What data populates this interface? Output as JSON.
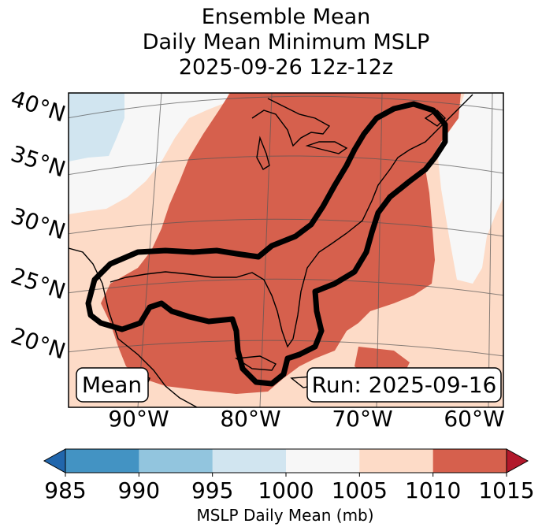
{
  "chart_data": {
    "type": "heatmap",
    "title_lines": [
      "Ensemble Mean",
      "Daily Mean Minimum MSLP",
      "2025-09-26 12z-12z"
    ],
    "lat_labels": [
      "40°N",
      "35°N",
      "30°N",
      "25°N",
      "20°N"
    ],
    "lon_labels": [
      "90°W",
      "80°W",
      "70°W",
      "60°W"
    ],
    "colorbar": {
      "label": "MSLP Daily Mean (mb)",
      "ticks": [
        "985",
        "990",
        "995",
        "1000",
        "1005",
        "1010",
        "1015"
      ],
      "levels": [
        985,
        990,
        995,
        1000,
        1005,
        1010,
        1015
      ],
      "colors": [
        "#4393c3",
        "#92c5de",
        "#d1e5f0",
        "#f7f7f7",
        "#fddbc7",
        "#d6604d"
      ],
      "under_color": "#2166ac",
      "over_color": "#b2182b"
    },
    "extent": {
      "lon": [
        -97,
        -58
      ],
      "lat": [
        17,
        42
      ]
    },
    "mean_label": "Mean",
    "run_label": "Run: 2025-09-16"
  }
}
